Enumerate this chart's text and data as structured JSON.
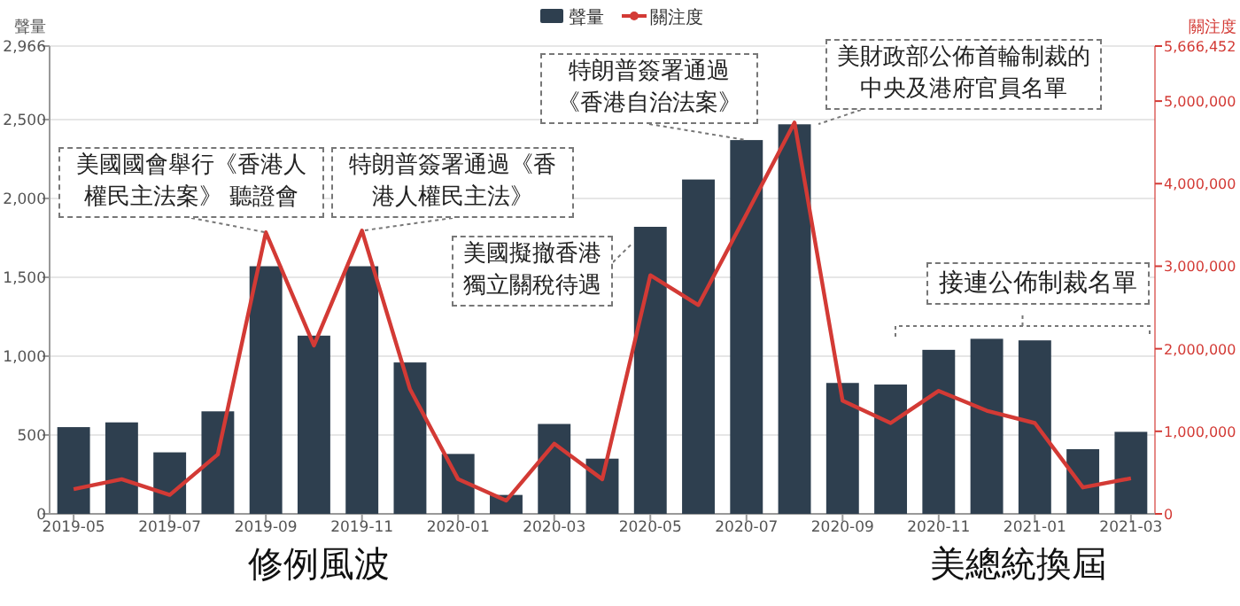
{
  "chart_data": {
    "type": "bar",
    "ylabel": "聲量",
    "y2label": "關注度",
    "categories": [
      "2019-05",
      null,
      "2019-07",
      null,
      "2019-09",
      null,
      "2019-11",
      null,
      "2020-01",
      null,
      "2020-03",
      null,
      "2020-05",
      null,
      "2020-07",
      null,
      "2020-09",
      null,
      "2020-11",
      null,
      "2021-01",
      null,
      "2021-03"
    ],
    "series": [
      {
        "name": "聲量",
        "color": "#2e3f4f",
        "values": [
          550,
          580,
          390,
          650,
          1570,
          1130,
          1570,
          960,
          380,
          120,
          570,
          350,
          1820,
          2120,
          2370,
          2470,
          830,
          820,
          1040,
          1110,
          1100,
          410,
          520
        ]
      },
      {
        "name": "關注度",
        "type": "line",
        "axis": "y2",
        "color": "#d33a35",
        "values": [
          300000,
          420000,
          230000,
          720000,
          3410000,
          2040000,
          3430000,
          1510000,
          420000,
          160000,
          850000,
          420000,
          2890000,
          2530000,
          3630000,
          4740000,
          1370000,
          1100000,
          1490000,
          1250000,
          1100000,
          320000,
          430000
        ]
      }
    ],
    "ylim": [
      0,
      2966
    ],
    "yticks": [
      0,
      500,
      {
        "value": 1000,
        "label": "1,000"
      },
      {
        "value": 1500,
        "label": "1,500"
      },
      {
        "value": 2000,
        "label": "2,000"
      },
      {
        "value": 2500,
        "label": "2,500"
      },
      {
        "value": 2966,
        "label": "2,966"
      }
    ],
    "y2lim": [
      0,
      5666452
    ],
    "y2ticks": [
      0,
      {
        "value": 1000000,
        "label": "1,000,000"
      },
      {
        "value": 2000000,
        "label": "2,000,000"
      },
      {
        "value": 3000000,
        "label": "3,000,000"
      },
      {
        "value": 4000000,
        "label": "4,000,000"
      },
      {
        "value": 5000000,
        "label": "5,000,000"
      },
      {
        "value": 5666452,
        "label": "5,666,452"
      }
    ],
    "grid": "y",
    "legend": "top",
    "annotations": [
      {
        "text": "美國國會舉行《香港人權民主法案》 聽證會",
        "x": "2019-09",
        "y": 1785
      },
      {
        "text": "特朗普簽署通過《香港人權民主法》",
        "x": "2019-11",
        "y": 1795
      },
      "美國擬撤香港獨立關稅待遇",
      {
        "text": "特朗普簽署通過《香港自治法案》",
        "x": "2020-07",
        "y": 2370
      },
      "美財政部公佈首輪制裁的中央及港府官員名單",
      "接連公佈制裁名單",
      "修例風波",
      "美總統換屆"
    ]
  }
}
